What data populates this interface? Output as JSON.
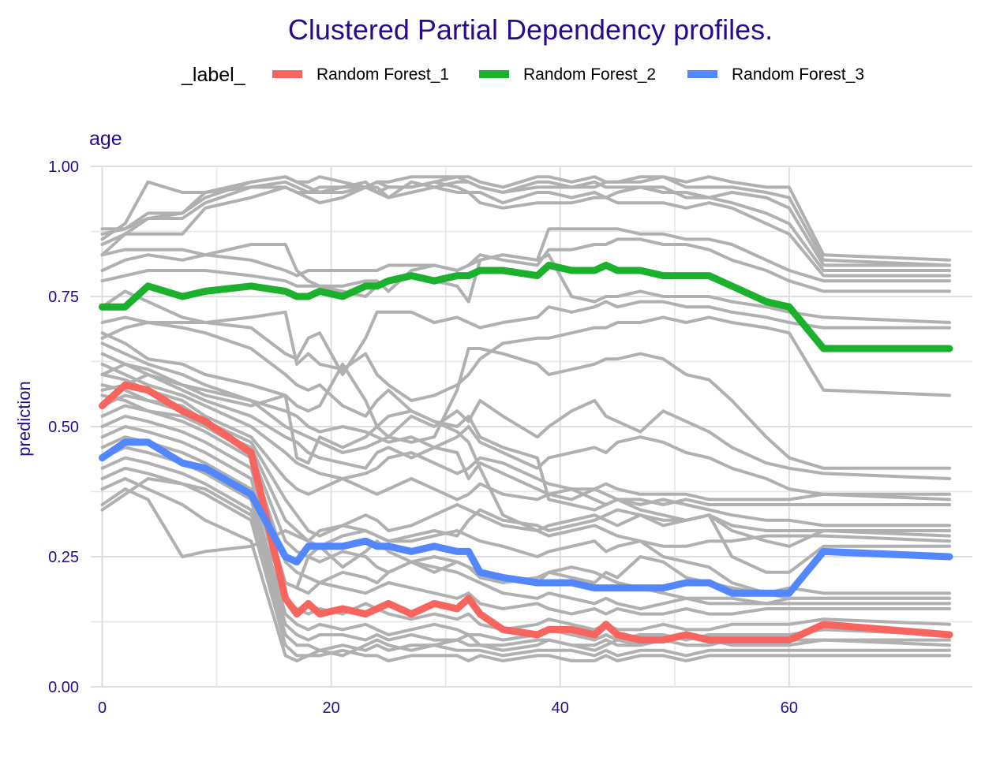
{
  "chart_data": {
    "type": "line",
    "title": "Clustered Partial Dependency profiles.",
    "facet_label": "age",
    "xlabel": "",
    "ylabel": "prediction",
    "xlim": [
      -1,
      76
    ],
    "ylim": [
      0,
      1
    ],
    "x_ticks": [
      0,
      20,
      40,
      60
    ],
    "y_ticks": [
      0.0,
      0.25,
      0.5,
      0.75,
      1.0
    ],
    "y_tick_labels": [
      "0.00",
      "0.25",
      "0.50",
      "0.75",
      "1.00"
    ],
    "x_tick_labels": [
      "0",
      "20",
      "40",
      "60"
    ],
    "grid": true,
    "legend": {
      "title": "_label_",
      "placement": "top",
      "entries": [
        {
          "name": "Random Forest_1",
          "color": "#f8645e"
        },
        {
          "name": "Random Forest_2",
          "color": "#1cb12c"
        },
        {
          "name": "Random Forest_3",
          "color": "#5287ff"
        }
      ]
    },
    "x": [
      0,
      2,
      4,
      7,
      9,
      13,
      16,
      17,
      18,
      19,
      21,
      23,
      24,
      25,
      27,
      29,
      31,
      32,
      33,
      35,
      38,
      39,
      41,
      43,
      44,
      45,
      47,
      49,
      51,
      53,
      55,
      58,
      60,
      63,
      74
    ],
    "series": [
      {
        "name": "Random Forest_1",
        "color": "#f8645e",
        "values": [
          0.54,
          0.58,
          0.57,
          0.53,
          0.51,
          0.45,
          0.17,
          0.14,
          0.16,
          0.14,
          0.15,
          0.14,
          0.15,
          0.16,
          0.14,
          0.16,
          0.15,
          0.17,
          0.14,
          0.11,
          0.1,
          0.11,
          0.11,
          0.1,
          0.12,
          0.1,
          0.09,
          0.09,
          0.1,
          0.09,
          0.09,
          0.09,
          0.09,
          0.12,
          0.1
        ]
      },
      {
        "name": "Random Forest_2",
        "color": "#1cb12c",
        "values": [
          0.73,
          0.73,
          0.77,
          0.75,
          0.76,
          0.77,
          0.76,
          0.75,
          0.75,
          0.76,
          0.75,
          0.77,
          0.77,
          0.78,
          0.79,
          0.78,
          0.79,
          0.79,
          0.8,
          0.8,
          0.79,
          0.81,
          0.8,
          0.8,
          0.81,
          0.8,
          0.8,
          0.79,
          0.79,
          0.79,
          0.77,
          0.74,
          0.73,
          0.65,
          0.65
        ]
      },
      {
        "name": "Random Forest_3",
        "color": "#5287ff",
        "values": [
          0.44,
          0.47,
          0.47,
          0.43,
          0.42,
          0.37,
          0.25,
          0.24,
          0.27,
          0.27,
          0.27,
          0.28,
          0.27,
          0.27,
          0.26,
          0.27,
          0.26,
          0.26,
          0.22,
          0.21,
          0.2,
          0.2,
          0.2,
          0.19,
          0.19,
          0.19,
          0.19,
          0.19,
          0.2,
          0.2,
          0.18,
          0.18,
          0.18,
          0.26,
          0.25
        ]
      }
    ],
    "background_series": [
      [
        0.88,
        0.88,
        0.91,
        0.91,
        0.95,
        0.97,
        0.98,
        0.97,
        0.97,
        0.98,
        0.97,
        0.96,
        0.97,
        0.97,
        0.98,
        0.98,
        0.98,
        0.98,
        0.97,
        0.96,
        0.98,
        0.98,
        0.97,
        0.98,
        0.97,
        0.97,
        0.98,
        0.98,
        0.97,
        0.98,
        0.97,
        0.96,
        0.96,
        0.83,
        0.82
      ],
      [
        0.87,
        0.88,
        0.9,
        0.9,
        0.93,
        0.96,
        0.97,
        0.96,
        0.95,
        0.96,
        0.96,
        0.97,
        0.95,
        0.94,
        0.97,
        0.96,
        0.97,
        0.97,
        0.96,
        0.95,
        0.97,
        0.97,
        0.96,
        0.96,
        0.97,
        0.97,
        0.97,
        0.98,
        0.96,
        0.96,
        0.96,
        0.95,
        0.94,
        0.82,
        0.81
      ],
      [
        0.86,
        0.89,
        0.97,
        0.95,
        0.95,
        0.96,
        0.96,
        0.95,
        0.94,
        0.93,
        0.94,
        0.96,
        0.96,
        0.94,
        0.95,
        0.96,
        0.95,
        0.95,
        0.95,
        0.93,
        0.95,
        0.95,
        0.94,
        0.95,
        0.94,
        0.95,
        0.96,
        0.95,
        0.95,
        0.94,
        0.95,
        0.94,
        0.92,
        0.81,
        0.81
      ],
      [
        0.85,
        0.87,
        0.9,
        0.91,
        0.94,
        0.97,
        0.98,
        0.97,
        0.96,
        0.95,
        0.96,
        0.96,
        0.97,
        0.96,
        0.96,
        0.97,
        0.98,
        0.97,
        0.96,
        0.95,
        0.96,
        0.96,
        0.96,
        0.97,
        0.96,
        0.96,
        0.96,
        0.96,
        0.94,
        0.94,
        0.93,
        0.91,
        0.89,
        0.8,
        0.8
      ],
      [
        0.83,
        0.87,
        0.87,
        0.87,
        0.92,
        0.94,
        0.96,
        0.95,
        0.95,
        0.95,
        0.95,
        0.96,
        0.95,
        0.96,
        0.96,
        0.97,
        0.96,
        0.95,
        0.93,
        0.92,
        0.93,
        0.93,
        0.93,
        0.94,
        0.94,
        0.93,
        0.93,
        0.93,
        0.92,
        0.93,
        0.92,
        0.89,
        0.87,
        0.79,
        0.79
      ],
      [
        0.83,
        0.84,
        0.84,
        0.84,
        0.83,
        0.85,
        0.85,
        0.8,
        0.78,
        0.77,
        0.77,
        0.78,
        0.78,
        0.76,
        0.8,
        0.81,
        0.8,
        0.81,
        0.82,
        0.83,
        0.82,
        0.88,
        0.88,
        0.88,
        0.88,
        0.88,
        0.87,
        0.87,
        0.86,
        0.86,
        0.85,
        0.82,
        0.8,
        0.78,
        0.78
      ],
      [
        0.8,
        0.82,
        0.83,
        0.82,
        0.83,
        0.82,
        0.8,
        0.79,
        0.8,
        0.8,
        0.8,
        0.8,
        0.8,
        0.81,
        0.81,
        0.81,
        0.8,
        0.81,
        0.83,
        0.82,
        0.81,
        0.84,
        0.84,
        0.85,
        0.85,
        0.86,
        0.86,
        0.85,
        0.85,
        0.84,
        0.82,
        0.8,
        0.78,
        0.76,
        0.76
      ],
      [
        0.78,
        0.79,
        0.8,
        0.8,
        0.8,
        0.79,
        0.78,
        0.77,
        0.77,
        0.77,
        0.76,
        0.75,
        0.77,
        0.78,
        0.79,
        0.78,
        0.77,
        0.74,
        0.82,
        0.83,
        0.82,
        0.83,
        0.75,
        0.74,
        0.75,
        0.75,
        0.76,
        0.75,
        0.75,
        0.75,
        0.74,
        0.73,
        0.72,
        0.71,
        0.7
      ],
      [
        0.73,
        0.76,
        0.74,
        0.71,
        0.7,
        0.69,
        0.64,
        0.63,
        0.67,
        0.68,
        0.6,
        0.67,
        0.72,
        0.72,
        0.72,
        0.7,
        0.71,
        0.7,
        0.69,
        0.7,
        0.71,
        0.73,
        0.72,
        0.73,
        0.74,
        0.73,
        0.74,
        0.74,
        0.73,
        0.73,
        0.72,
        0.71,
        0.7,
        0.69,
        0.69
      ],
      [
        0.7,
        0.71,
        0.7,
        0.7,
        0.7,
        0.71,
        0.72,
        0.62,
        0.64,
        0.62,
        0.61,
        0.64,
        0.6,
        0.58,
        0.55,
        0.56,
        0.58,
        0.6,
        0.63,
        0.66,
        0.67,
        0.67,
        0.68,
        0.69,
        0.69,
        0.7,
        0.7,
        0.71,
        0.7,
        0.71,
        0.7,
        0.69,
        0.68,
        0.57,
        0.56
      ],
      [
        0.68,
        0.66,
        0.63,
        0.62,
        0.6,
        0.58,
        0.56,
        0.54,
        0.53,
        0.54,
        0.62,
        0.55,
        0.5,
        0.48,
        0.47,
        0.48,
        0.57,
        0.65,
        0.65,
        0.64,
        0.62,
        0.6,
        0.61,
        0.62,
        0.63,
        0.63,
        0.64,
        0.63,
        0.6,
        0.59,
        0.55,
        0.48,
        0.44,
        0.42,
        0.42
      ],
      [
        0.66,
        0.64,
        0.62,
        0.6,
        0.58,
        0.55,
        0.5,
        0.49,
        0.48,
        0.47,
        0.45,
        0.46,
        0.47,
        0.48,
        0.52,
        0.5,
        0.53,
        0.51,
        0.55,
        0.52,
        0.48,
        0.5,
        0.53,
        0.55,
        0.52,
        0.51,
        0.49,
        0.53,
        0.51,
        0.49,
        0.46,
        0.43,
        0.42,
        0.41,
        0.4
      ],
      [
        0.64,
        0.62,
        0.6,
        0.57,
        0.55,
        0.52,
        0.48,
        0.47,
        0.45,
        0.44,
        0.43,
        0.42,
        0.45,
        0.46,
        0.44,
        0.46,
        0.48,
        0.5,
        0.47,
        0.45,
        0.42,
        0.44,
        0.45,
        0.46,
        0.45,
        0.47,
        0.48,
        0.47,
        0.45,
        0.44,
        0.42,
        0.4,
        0.38,
        0.37,
        0.36
      ],
      [
        0.62,
        0.6,
        0.58,
        0.56,
        0.54,
        0.5,
        0.45,
        0.43,
        0.42,
        0.41,
        0.4,
        0.41,
        0.42,
        0.44,
        0.45,
        0.43,
        0.41,
        0.42,
        0.44,
        0.43,
        0.4,
        0.39,
        0.38,
        0.38,
        0.39,
        0.38,
        0.37,
        0.37,
        0.37,
        0.36,
        0.36,
        0.36,
        0.36,
        0.37,
        0.37
      ],
      [
        0.6,
        0.59,
        0.57,
        0.55,
        0.52,
        0.48,
        0.4,
        0.38,
        0.37,
        0.38,
        0.4,
        0.38,
        0.37,
        0.38,
        0.4,
        0.38,
        0.36,
        0.37,
        0.39,
        0.37,
        0.36,
        0.37,
        0.38,
        0.36,
        0.35,
        0.36,
        0.34,
        0.33,
        0.32,
        0.33,
        0.3,
        0.28,
        0.27,
        0.3,
        0.3
      ],
      [
        0.58,
        0.57,
        0.55,
        0.54,
        0.51,
        0.47,
        0.36,
        0.33,
        0.3,
        0.29,
        0.31,
        0.33,
        0.32,
        0.3,
        0.31,
        0.33,
        0.35,
        0.34,
        0.33,
        0.31,
        0.3,
        0.31,
        0.32,
        0.33,
        0.32,
        0.31,
        0.33,
        0.32,
        0.32,
        0.33,
        0.31,
        0.3,
        0.3,
        0.3,
        0.29
      ],
      [
        0.56,
        0.55,
        0.53,
        0.52,
        0.5,
        0.46,
        0.32,
        0.3,
        0.28,
        0.27,
        0.29,
        0.3,
        0.29,
        0.28,
        0.28,
        0.29,
        0.3,
        0.29,
        0.28,
        0.27,
        0.25,
        0.26,
        0.27,
        0.28,
        0.26,
        0.27,
        0.28,
        0.27,
        0.27,
        0.28,
        0.28,
        0.29,
        0.29,
        0.29,
        0.28
      ],
      [
        0.54,
        0.56,
        0.55,
        0.53,
        0.5,
        0.45,
        0.28,
        0.26,
        0.25,
        0.24,
        0.26,
        0.25,
        0.23,
        0.22,
        0.24,
        0.25,
        0.24,
        0.23,
        0.22,
        0.21,
        0.2,
        0.22,
        0.23,
        0.22,
        0.21,
        0.2,
        0.19,
        0.18,
        0.17,
        0.17,
        0.17,
        0.16,
        0.16,
        0.16,
        0.16
      ],
      [
        0.52,
        0.54,
        0.53,
        0.51,
        0.49,
        0.44,
        0.24,
        0.22,
        0.21,
        0.2,
        0.22,
        0.21,
        0.2,
        0.22,
        0.24,
        0.23,
        0.22,
        0.21,
        0.2,
        0.18,
        0.17,
        0.18,
        0.17,
        0.16,
        0.17,
        0.16,
        0.15,
        0.16,
        0.17,
        0.16,
        0.16,
        0.16,
        0.17,
        0.17,
        0.17
      ],
      [
        0.5,
        0.52,
        0.51,
        0.49,
        0.47,
        0.42,
        0.2,
        0.19,
        0.18,
        0.2,
        0.19,
        0.18,
        0.19,
        0.2,
        0.19,
        0.18,
        0.17,
        0.18,
        0.16,
        0.15,
        0.16,
        0.15,
        0.14,
        0.15,
        0.14,
        0.15,
        0.14,
        0.14,
        0.15,
        0.14,
        0.14,
        0.15,
        0.15,
        0.15,
        0.15
      ],
      [
        0.48,
        0.5,
        0.49,
        0.47,
        0.45,
        0.4,
        0.17,
        0.15,
        0.14,
        0.15,
        0.14,
        0.16,
        0.15,
        0.14,
        0.13,
        0.14,
        0.13,
        0.14,
        0.12,
        0.11,
        0.12,
        0.13,
        0.12,
        0.11,
        0.12,
        0.11,
        0.11,
        0.12,
        0.11,
        0.11,
        0.12,
        0.12,
        0.12,
        0.13,
        0.12
      ],
      [
        0.46,
        0.48,
        0.47,
        0.45,
        0.43,
        0.38,
        0.14,
        0.12,
        0.11,
        0.12,
        0.11,
        0.12,
        0.11,
        0.1,
        0.11,
        0.12,
        0.11,
        0.1,
        0.1,
        0.09,
        0.1,
        0.11,
        0.1,
        0.09,
        0.1,
        0.09,
        0.1,
        0.1,
        0.09,
        0.1,
        0.1,
        0.1,
        0.1,
        0.11,
        0.1
      ],
      [
        0.44,
        0.46,
        0.45,
        0.43,
        0.41,
        0.36,
        0.12,
        0.1,
        0.09,
        0.1,
        0.1,
        0.09,
        0.1,
        0.09,
        0.1,
        0.09,
        0.09,
        0.08,
        0.08,
        0.08,
        0.09,
        0.09,
        0.08,
        0.08,
        0.09,
        0.08,
        0.08,
        0.09,
        0.08,
        0.08,
        0.09,
        0.09,
        0.09,
        0.09,
        0.09
      ],
      [
        0.42,
        0.44,
        0.43,
        0.41,
        0.39,
        0.34,
        0.1,
        0.08,
        0.08,
        0.07,
        0.08,
        0.07,
        0.08,
        0.07,
        0.08,
        0.08,
        0.07,
        0.07,
        0.07,
        0.06,
        0.07,
        0.07,
        0.07,
        0.06,
        0.07,
        0.06,
        0.07,
        0.07,
        0.06,
        0.07,
        0.07,
        0.07,
        0.07,
        0.07,
        0.07
      ],
      [
        0.4,
        0.42,
        0.41,
        0.39,
        0.37,
        0.32,
        0.08,
        0.06,
        0.06,
        0.06,
        0.07,
        0.06,
        0.06,
        0.05,
        0.06,
        0.06,
        0.06,
        0.05,
        0.06,
        0.05,
        0.06,
        0.06,
        0.05,
        0.05,
        0.06,
        0.05,
        0.06,
        0.06,
        0.05,
        0.06,
        0.06,
        0.06,
        0.06,
        0.06,
        0.06
      ],
      [
        0.38,
        0.4,
        0.38,
        0.35,
        0.32,
        0.28,
        0.06,
        0.05,
        0.06,
        0.07,
        0.06,
        0.08,
        0.09,
        0.08,
        0.07,
        0.08,
        0.09,
        0.1,
        0.08,
        0.07,
        0.08,
        0.09,
        0.08,
        0.07,
        0.08,
        0.09,
        0.08,
        0.09,
        0.1,
        0.09,
        0.08,
        0.08,
        0.08,
        0.09,
        0.08
      ],
      [
        0.35,
        0.38,
        0.36,
        0.25,
        0.26,
        0.27,
        0.3,
        0.29,
        0.28,
        0.3,
        0.31,
        0.3,
        0.29,
        0.28,
        0.29,
        0.3,
        0.29,
        0.32,
        0.34,
        0.32,
        0.31,
        0.3,
        0.31,
        0.32,
        0.33,
        0.34,
        0.33,
        0.31,
        0.32,
        0.33,
        0.25,
        0.22,
        0.22,
        0.27,
        0.27
      ],
      [
        0.34,
        0.37,
        0.4,
        0.39,
        0.38,
        0.33,
        0.2,
        0.19,
        0.25,
        0.27,
        0.23,
        0.26,
        0.28,
        0.26,
        0.24,
        0.22,
        0.24,
        0.23,
        0.21,
        0.2,
        0.21,
        0.22,
        0.21,
        0.2,
        0.22,
        0.21,
        0.25,
        0.24,
        0.21,
        0.2,
        0.19,
        0.18,
        0.19,
        0.18,
        0.18
      ],
      [
        0.6,
        0.62,
        0.61,
        0.58,
        0.56,
        0.54,
        0.56,
        0.44,
        0.43,
        0.48,
        0.46,
        0.48,
        0.5,
        0.52,
        0.53,
        0.51,
        0.5,
        0.52,
        0.48,
        0.46,
        0.44,
        0.36,
        0.35,
        0.34,
        0.35,
        0.36,
        0.36,
        0.35,
        0.36,
        0.35,
        0.35,
        0.35,
        0.35,
        0.35,
        0.35
      ],
      [
        0.57,
        0.58,
        0.6,
        0.58,
        0.57,
        0.55,
        0.53,
        0.52,
        0.5,
        0.49,
        0.5,
        0.49,
        0.48,
        0.47,
        0.48,
        0.46,
        0.45,
        0.4,
        0.43,
        0.41,
        0.38,
        0.37,
        0.36,
        0.38,
        0.37,
        0.36,
        0.35,
        0.36,
        0.35,
        0.34,
        0.33,
        0.32,
        0.32,
        0.31,
        0.31
      ],
      [
        0.67,
        0.69,
        0.7,
        0.69,
        0.68,
        0.65,
        0.6,
        0.58,
        0.57,
        0.58,
        0.54,
        0.52,
        0.55,
        0.57,
        0.53,
        0.51,
        0.49,
        0.47,
        0.42,
        0.33,
        0.3,
        0.29,
        0.3,
        0.31,
        0.3,
        0.29,
        0.28,
        0.25,
        0.24,
        0.23,
        0.2,
        0.18,
        0.17,
        0.17,
        0.17
      ]
    ]
  }
}
